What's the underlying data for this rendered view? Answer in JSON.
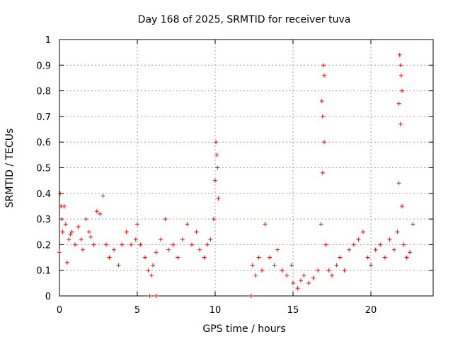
{
  "chart_data": {
    "type": "scatter",
    "title": "Day 168 of 2025, SRMTID for receiver tuva",
    "xlabel": "GPS time / hours",
    "ylabel": "SRMTID / TECUs",
    "xlim": [
      0,
      24
    ],
    "ylim": [
      0,
      1
    ],
    "xticks": [
      0,
      5,
      10,
      15,
      20
    ],
    "xtick_labels": [
      "0",
      "5",
      "10",
      "15",
      "20"
    ],
    "yticks": [
      0,
      0.1,
      0.2,
      0.3,
      0.4,
      0.5,
      0.6,
      0.7,
      0.8,
      0.9,
      1
    ],
    "ytick_labels": [
      "0",
      "0.1",
      "0.2",
      "0.3",
      "0.4",
      "0.5",
      "0.6",
      "0.7",
      "0.8",
      "0.9",
      "1"
    ],
    "grid": true,
    "series": [
      {
        "name": "SRMTID",
        "marker": "+",
        "color": "#ff0000",
        "x": [
          0.0,
          0.05,
          0.1,
          0.15,
          0.2,
          0.3,
          0.4,
          0.5,
          0.6,
          0.7,
          0.8,
          1.0,
          1.2,
          1.4,
          1.5,
          1.7,
          1.9,
          2.0,
          2.2,
          2.4,
          2.6,
          2.8,
          3.0,
          3.2,
          3.5,
          3.8,
          4.0,
          4.3,
          4.6,
          4.9,
          5.0,
          5.2,
          5.5,
          5.7,
          5.9,
          6.0,
          6.2,
          6.5,
          6.8,
          7.0,
          7.3,
          7.6,
          7.9,
          8.2,
          8.5,
          8.8,
          9.0,
          9.3,
          9.5,
          9.7,
          9.9,
          10.0,
          10.05,
          10.1,
          10.15,
          10.2,
          5.8,
          6.2,
          12.3,
          12.4,
          12.6,
          12.8,
          13.0,
          13.2,
          13.5,
          13.8,
          14.0,
          14.3,
          14.6,
          14.9,
          15.0,
          15.3,
          15.5,
          15.7,
          16.0,
          16.3,
          16.6,
          16.8,
          16.9,
          17.0,
          16.85,
          16.95,
          17.0,
          16.9,
          17.1,
          17.3,
          17.5,
          17.8,
          18.0,
          18.3,
          18.6,
          18.9,
          19.2,
          19.5,
          19.8,
          20.0,
          20.3,
          20.6,
          20.9,
          21.2,
          21.5,
          21.7,
          21.8,
          21.85,
          21.9,
          21.95,
          22.0,
          21.8,
          21.9,
          22.0,
          22.1,
          22.3,
          22.5,
          22.7
        ],
        "y": [
          0.17,
          0.4,
          0.35,
          0.3,
          0.25,
          0.35,
          0.28,
          0.13,
          0.22,
          0.24,
          0.25,
          0.2,
          0.27,
          0.22,
          0.18,
          0.3,
          0.25,
          0.23,
          0.2,
          0.33,
          0.32,
          0.39,
          0.2,
          0.15,
          0.18,
          0.12,
          0.2,
          0.25,
          0.2,
          0.22,
          0.28,
          0.2,
          0.15,
          0.1,
          0.08,
          0.12,
          0.17,
          0.22,
          0.3,
          0.18,
          0.2,
          0.15,
          0.22,
          0.28,
          0.2,
          0.25,
          0.18,
          0.15,
          0.2,
          0.22,
          0.3,
          0.45,
          0.6,
          0.55,
          0.5,
          0.38,
          0.0,
          0.0,
          0.0,
          0.12,
          0.08,
          0.15,
          0.1,
          0.28,
          0.15,
          0.12,
          0.18,
          0.1,
          0.08,
          0.12,
          0.05,
          0.03,
          0.06,
          0.08,
          0.05,
          0.07,
          0.1,
          0.28,
          0.48,
          0.6,
          0.76,
          0.9,
          0.86,
          0.7,
          0.2,
          0.1,
          0.08,
          0.12,
          0.15,
          0.1,
          0.18,
          0.2,
          0.22,
          0.25,
          0.15,
          0.12,
          0.18,
          0.2,
          0.15,
          0.22,
          0.18,
          0.25,
          0.44,
          0.94,
          0.9,
          0.86,
          0.8,
          0.75,
          0.67,
          0.35,
          0.2,
          0.15,
          0.17,
          0.28
        ]
      }
    ]
  }
}
